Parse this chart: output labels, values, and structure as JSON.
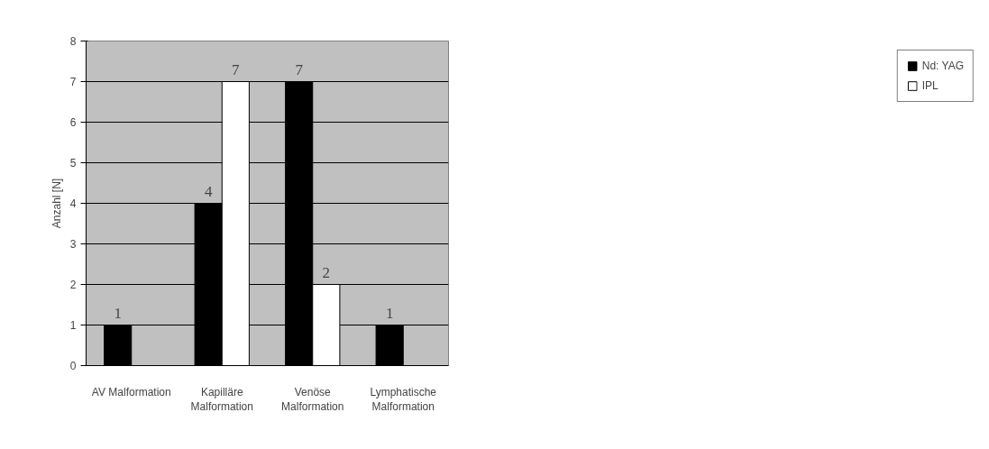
{
  "chart_data": {
    "type": "bar",
    "ylabel": "Anzahl [N]",
    "categories": [
      "AV Malformation",
      "Kapilläre\nMalformation",
      "Venöse\nMalformation",
      "Lymphatische\nMalformation"
    ],
    "series": [
      {
        "name": "Nd: YAG",
        "color": "#000000",
        "values": [
          1,
          4,
          7,
          1
        ]
      },
      {
        "name": "IPL",
        "color": "#ffffff",
        "values": [
          null,
          7,
          2,
          null
        ]
      }
    ],
    "ylim": [
      0,
      8
    ],
    "yticks": [
      0,
      1,
      2,
      3,
      4,
      5,
      6,
      7,
      8
    ],
    "grid": "y",
    "legend": "right",
    "data_labels": true
  }
}
